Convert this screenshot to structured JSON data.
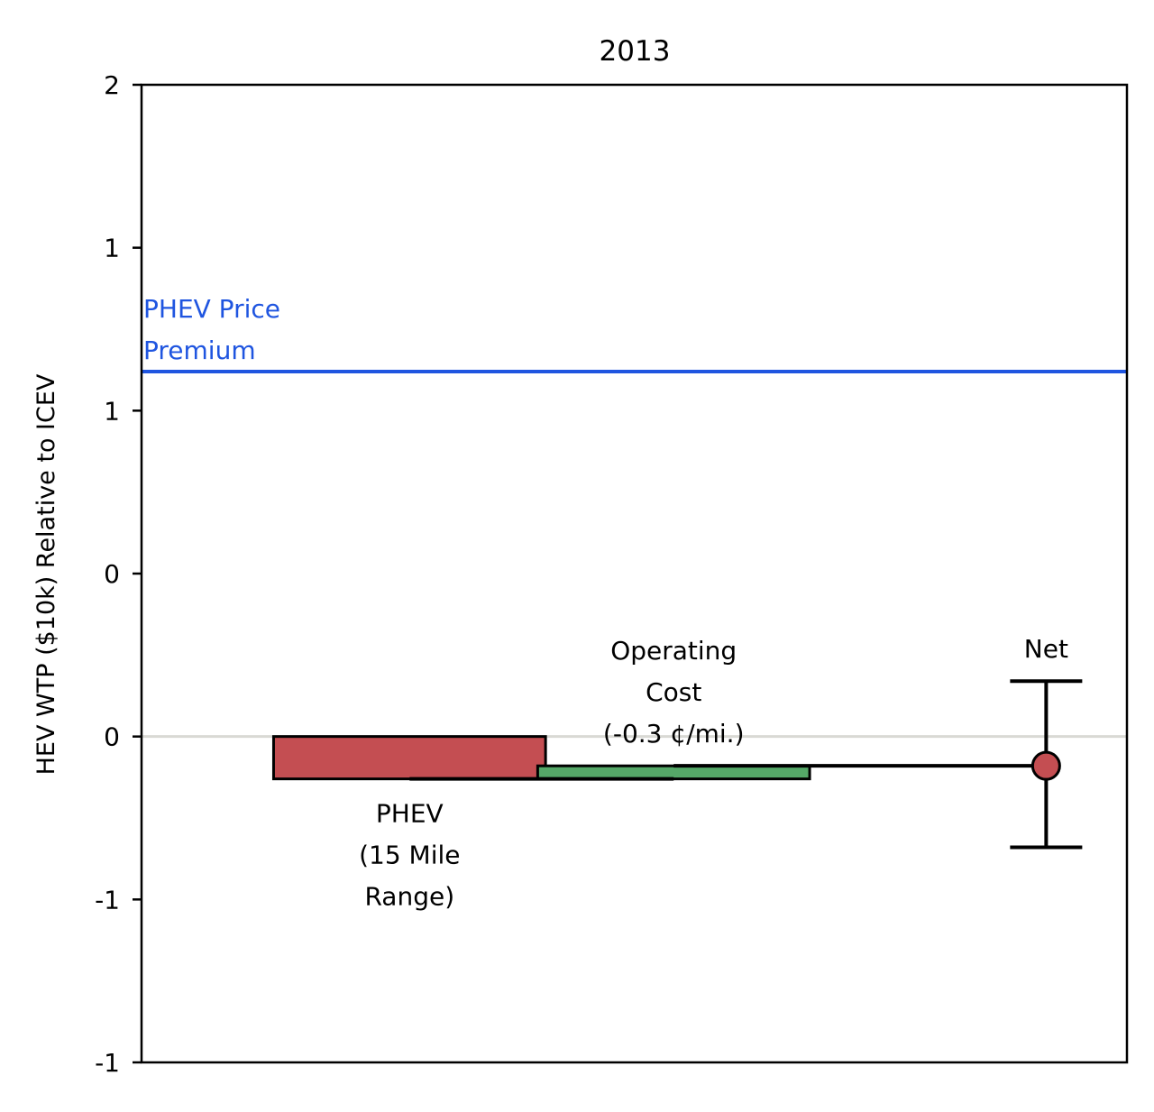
{
  "chart_data": {
    "type": "bar",
    "title": "2013",
    "ylabel": "HEV WTP ($10k) Relative to ICEV",
    "ylim": [
      -1.0,
      2.0
    ],
    "yticks": [
      -1.0,
      -0.5,
      0.0,
      0.5,
      1.0,
      1.5,
      2.0
    ],
    "ytick_labels": [
      "-1",
      "-1",
      "0",
      "0",
      "1",
      "1",
      "2"
    ],
    "grid": false,
    "legend": "none",
    "zero_line_color": "#d9d9d4",
    "bars": [
      {
        "name": "phev",
        "label_lines": [
          "PHEV",
          "(15 Mile",
          "Range)"
        ],
        "start": 0.0,
        "end": -0.13,
        "color": "#c44e52"
      },
      {
        "name": "operating-cost",
        "label_lines": [
          "Operating",
          "Cost",
          "(-0.3 ¢/mi.)"
        ],
        "start": -0.13,
        "end": -0.09,
        "color": "#55a868"
      }
    ],
    "net": {
      "label": "Net",
      "value": -0.09,
      "error_low": -0.34,
      "error_high": 0.17,
      "color": "#c44e52"
    },
    "reference_line": {
      "label_lines": [
        "PHEV Price",
        "Premium"
      ],
      "value": 1.12,
      "color": "#1f55e0"
    }
  }
}
